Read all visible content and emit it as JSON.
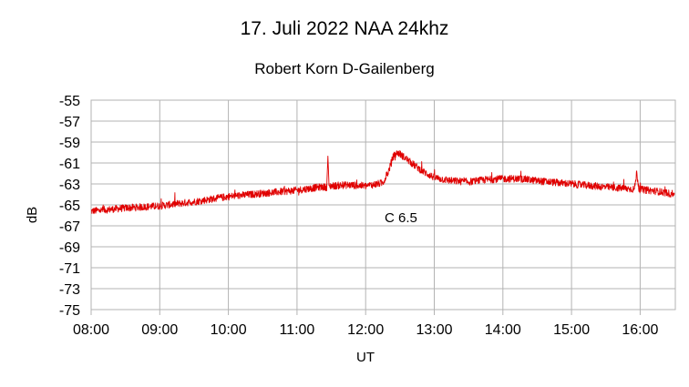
{
  "chart_data": {
    "type": "line",
    "title": "17. Juli 2022 NAA 24khz",
    "subtitle": "Robert Korn D-Gailenberg",
    "xlabel": "UT",
    "ylabel": "dB",
    "x_tick_labels": [
      "08:00",
      "09:00",
      "10:00",
      "11:00",
      "12:00",
      "13:00",
      "14:00",
      "15:00",
      "16:00"
    ],
    "y_tick_labels": [
      "-55",
      "-57",
      "-59",
      "-61",
      "-63",
      "-65",
      "-67",
      "-69",
      "-71",
      "-73",
      "-75"
    ],
    "xlim": [
      "08:00",
      "16:30"
    ],
    "ylim": [
      -75,
      -55
    ],
    "grid": true,
    "series": [
      {
        "color": "#e00000",
        "x": [
          "08:00",
          "08:30",
          "09:00",
          "09:30",
          "10:00",
          "10:30",
          "11:00",
          "11:20",
          "11:26",
          "11:27",
          "11:28",
          "11:45",
          "12:00",
          "12:15",
          "12:20",
          "12:24",
          "12:28",
          "12:32",
          "12:40",
          "12:50",
          "13:00",
          "13:15",
          "13:30",
          "13:45",
          "14:00",
          "14:15",
          "14:30",
          "15:00",
          "15:30",
          "15:55",
          "15:57",
          "15:59",
          "16:15",
          "16:30"
        ],
        "y": [
          -65.6,
          -65.3,
          -65.1,
          -64.7,
          -64.2,
          -63.9,
          -63.6,
          -63.3,
          -63.3,
          -60.3,
          -63.2,
          -63.1,
          -63.2,
          -62.9,
          -61.8,
          -60.4,
          -60.0,
          -60.3,
          -61.0,
          -61.8,
          -62.4,
          -62.7,
          -62.8,
          -62.6,
          -62.5,
          -62.5,
          -62.7,
          -63.0,
          -63.3,
          -63.5,
          -61.9,
          -63.5,
          -63.7,
          -64.0
        ]
      }
    ],
    "annotations": [
      {
        "text": "C 6.5",
        "x": "12:15",
        "y": -66.2
      }
    ]
  }
}
